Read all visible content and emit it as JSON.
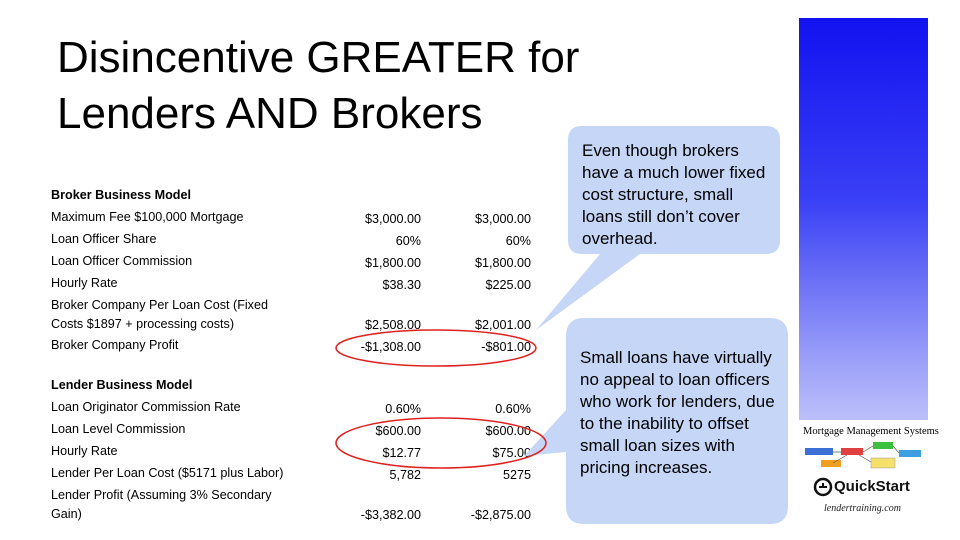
{
  "slide": {
    "title_line1": "Disincentive GREATER for",
    "title_line2": "Lenders AND Brokers"
  },
  "broker": {
    "header": "Broker Business  Model",
    "rows": [
      {
        "label": "Maximum Fee $100,000 Mortgage",
        "v1": "$3,000.00",
        "v2": "$3,000.00"
      },
      {
        "label": "Loan Officer Share",
        "v1": "60%",
        "v2": "60%"
      },
      {
        "label": "Loan Officer Commission",
        "v1": "$1,800.00",
        "v2": "$1,800.00"
      },
      {
        "label": "Hourly Rate",
        "v1": "$38.30",
        "v2": "$225.00"
      },
      {
        "label_line1": "Broker Company Per Loan Cost (Fixed",
        "label_line2": "Costs $1897 + processing costs)",
        "v1": "$2,508.00",
        "v2": "$2,001.00"
      },
      {
        "label": "Broker Company Profit",
        "v1": "-$1,308.00",
        "v2": "-$801.00"
      }
    ]
  },
  "lender": {
    "header": "Lender Business Model",
    "rows": [
      {
        "label": "Loan Originator Commission Rate",
        "v1": "0.60%",
        "v2": "0.60%"
      },
      {
        "label": "Loan Level Commission",
        "v1": "$600.00",
        "v2": "$600.00"
      },
      {
        "label": "Hourly Rate",
        "v1": "$12.77",
        "v2": "$75.00"
      },
      {
        "label": "Lender Per Loan Cost ($5171 plus Labor)",
        "v1": "5,782",
        "v2": "5275"
      },
      {
        "label_line1": "Lender Profit (Assuming 3% Secondary",
        "label_line2": "Gain)",
        "v1": "-$3,382.00",
        "v2": "-$2,875.00"
      }
    ]
  },
  "callouts": {
    "top": "Even though brokers have a much lower fixed cost structure, small loans still don’t cover overhead.",
    "bottom": "Small loans have virtually no appeal to loan officers who work for lenders, due to the inability to offset small loan sizes with pricing increases."
  },
  "logo": {
    "company": "Mortgage Management Systems",
    "product": "QuickStart",
    "website": "lendertraining.com"
  },
  "colors": {
    "callout_fill": "#c5d6f7",
    "highlight_ellipse": "#e02020",
    "sidebar_top": "#1212f0"
  }
}
